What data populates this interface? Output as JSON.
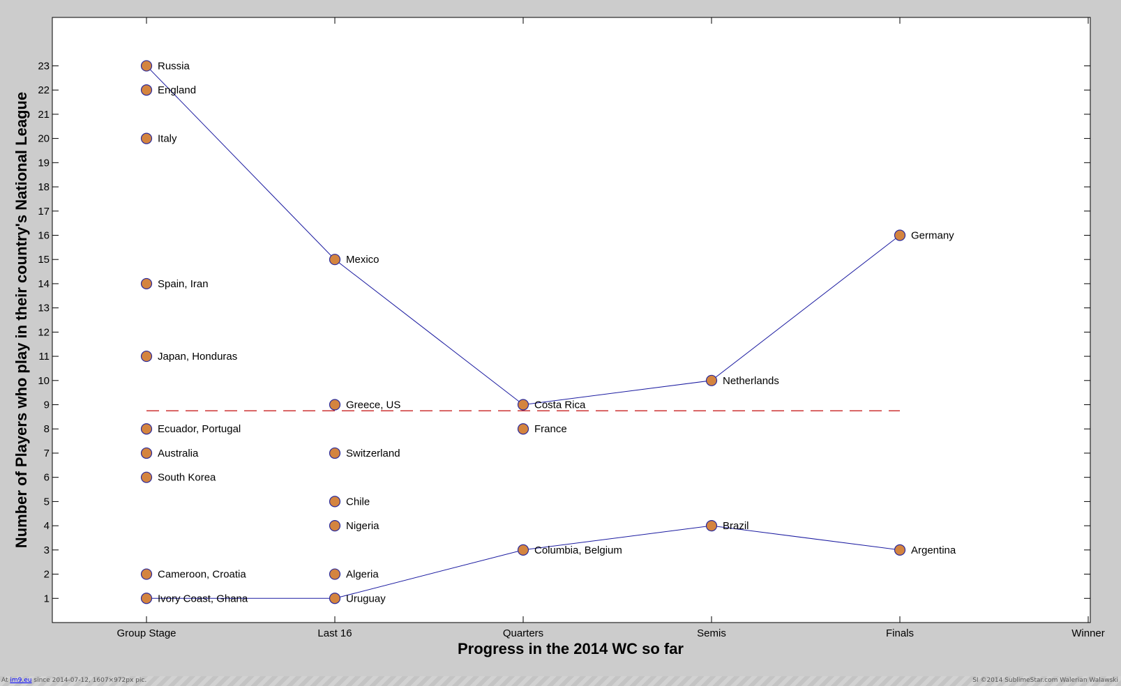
{
  "chart_data": {
    "type": "scatter",
    "xlabel": "Progress in the 2014 WC so far",
    "ylabel": "Number of Players who play in their country's National League",
    "categories": [
      "Group Stage",
      "Last 16",
      "Quarters",
      "Semis",
      "Finals",
      "Winner"
    ],
    "xlim": [
      -0.5,
      5
    ],
    "ylim": [
      0,
      25
    ],
    "yticks": [
      1,
      2,
      3,
      4,
      5,
      6,
      7,
      8,
      9,
      10,
      11,
      12,
      13,
      14,
      15,
      16,
      17,
      18,
      19,
      20,
      21,
      22,
      23
    ],
    "points": [
      {
        "x": "Group Stage",
        "y": 23,
        "label": "Russia"
      },
      {
        "x": "Group Stage",
        "y": 22,
        "label": "England"
      },
      {
        "x": "Group Stage",
        "y": 20,
        "label": "Italy"
      },
      {
        "x": "Group Stage",
        "y": 14,
        "label": "Spain, Iran"
      },
      {
        "x": "Group Stage",
        "y": 11,
        "label": "Japan, Honduras"
      },
      {
        "x": "Group Stage",
        "y": 8,
        "label": "Ecuador, Portugal"
      },
      {
        "x": "Group Stage",
        "y": 7,
        "label": "Australia"
      },
      {
        "x": "Group Stage",
        "y": 6,
        "label": "South Korea"
      },
      {
        "x": "Group Stage",
        "y": 2,
        "label": "Cameroon, Croatia"
      },
      {
        "x": "Group Stage",
        "y": 1,
        "label": "Ivory Coast, Ghana"
      },
      {
        "x": "Last 16",
        "y": 15,
        "label": "Mexico"
      },
      {
        "x": "Last 16",
        "y": 9,
        "label": "Greece, US"
      },
      {
        "x": "Last 16",
        "y": 7,
        "label": "Switzerland"
      },
      {
        "x": "Last 16",
        "y": 5,
        "label": "Chile"
      },
      {
        "x": "Last 16",
        "y": 4,
        "label": "Nigeria"
      },
      {
        "x": "Last 16",
        "y": 2,
        "label": "Algeria"
      },
      {
        "x": "Last 16",
        "y": 1,
        "label": "Uruguay"
      },
      {
        "x": "Quarters",
        "y": 9,
        "label": "Costa Rica"
      },
      {
        "x": "Quarters",
        "y": 8,
        "label": "France"
      },
      {
        "x": "Quarters",
        "y": 3,
        "label": "Columbia, Belgium"
      },
      {
        "x": "Semis",
        "y": 10,
        "label": "Netherlands"
      },
      {
        "x": "Semis",
        "y": 4,
        "label": "Brazil"
      },
      {
        "x": "Finals",
        "y": 16,
        "label": "Germany"
      },
      {
        "x": "Finals",
        "y": 3,
        "label": "Argentina"
      }
    ],
    "lines": [
      {
        "x": [
          "Group Stage",
          "Last 16",
          "Quarters",
          "Semis",
          "Finals"
        ],
        "y": [
          23,
          15,
          9,
          10,
          16
        ],
        "style": "solid"
      },
      {
        "x": [
          "Group Stage",
          "Last 16",
          "Quarters",
          "Semis",
          "Finals"
        ],
        "y": [
          1,
          1,
          3,
          4,
          3
        ],
        "style": "solid"
      }
    ],
    "reference_line": {
      "y": 8.75,
      "x_from": "Group Stage",
      "x_to": "Finals",
      "style": "dashed"
    },
    "grid": false,
    "colors": {
      "marker_fill": "#d4843f",
      "marker_edge": "#2a2a9a",
      "line": "#1a1aa0",
      "reference": "#cc3333",
      "plot_background": "#ffffff",
      "figure_background": "#cccccc"
    }
  },
  "footer": {
    "left_prefix": "At",
    "left_link": "im9.eu",
    "left_suffix": "since 2014-07-12, 1607×972px pic.",
    "right": "SI ©2014 SublimeStar.com Walerian Walawski"
  }
}
